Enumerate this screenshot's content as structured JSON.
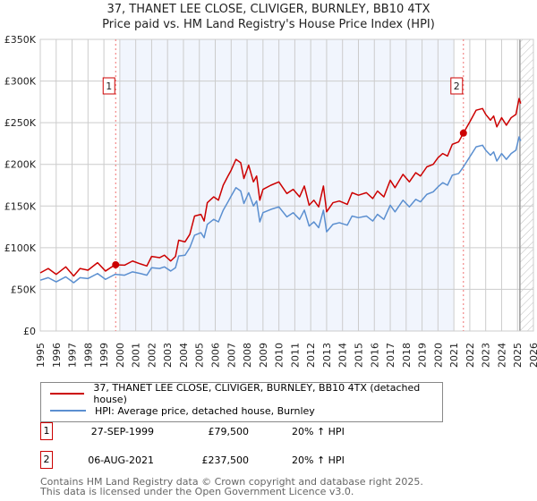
{
  "chart_data": {
    "type": "line",
    "title": "37, THANET LEE CLOSE, CLIVIGER, BURNLEY, BB10 4TX",
    "subtitle": "Price paid vs. HM Land Registry's House Price Index (HPI)",
    "xlim": [
      1995,
      2026
    ],
    "ylim": [
      0,
      350000
    ],
    "x_ticks": [
      "1995",
      "1996",
      "1997",
      "1998",
      "1999",
      "2000",
      "2001",
      "2002",
      "2003",
      "2004",
      "2005",
      "2006",
      "2007",
      "2008",
      "2009",
      "2010",
      "2011",
      "2012",
      "2013",
      "2014",
      "2015",
      "2016",
      "2017",
      "2018",
      "2019",
      "2020",
      "2021",
      "2022",
      "2023",
      "2024",
      "2025",
      "2026"
    ],
    "y_ticks": [
      {
        "v": 0,
        "label": "£0"
      },
      {
        "v": 50000,
        "label": "£50K"
      },
      {
        "v": 100000,
        "label": "£100K"
      },
      {
        "v": 150000,
        "label": "£150K"
      },
      {
        "v": 200000,
        "label": "£200K"
      },
      {
        "v": 250000,
        "label": "£250K"
      },
      {
        "v": 300000,
        "label": "£300K"
      },
      {
        "v": 350000,
        "label": "£350K"
      }
    ],
    "grid": true,
    "shaded_range": [
      2000.0,
      2021.0
    ],
    "hatched_from": 2025.15,
    "x": [
      1995.0,
      1995.5,
      1996.0,
      1996.6,
      1997.1,
      1997.5,
      1998.0,
      1998.6,
      1999.1,
      1999.7,
      2000.3,
      2000.8,
      2001.3,
      2001.7,
      2002.0,
      2002.5,
      2002.8,
      2003.2,
      2003.5,
      2003.7,
      2004.1,
      2004.4,
      2004.7,
      2005.1,
      2005.3,
      2005.5,
      2005.9,
      2006.2,
      2006.5,
      2006.8,
      2007.0,
      2007.3,
      2007.6,
      2007.8,
      2008.1,
      2008.4,
      2008.6,
      2008.8,
      2009.0,
      2009.5,
      2010.0,
      2010.5,
      2010.9,
      2011.3,
      2011.6,
      2011.9,
      2012.2,
      2012.5,
      2012.8,
      2013.0,
      2013.4,
      2013.8,
      2014.3,
      2014.6,
      2015.0,
      2015.5,
      2015.9,
      2016.2,
      2016.6,
      2017.0,
      2017.3,
      2017.8,
      2018.2,
      2018.6,
      2018.9,
      2019.3,
      2019.7,
      2020.0,
      2020.3,
      2020.6,
      2020.9,
      2021.3,
      2021.6,
      2022.0,
      2022.4,
      2022.8,
      2023.0,
      2023.3,
      2023.5,
      2023.7,
      2024.0,
      2024.3,
      2024.6,
      2024.9,
      2025.1,
      2025.2
    ],
    "series": [
      {
        "name": "37, THANET LEE CLOSE, CLIVIGER, BURNLEY, BB10 4TX (detached house)",
        "color": "#cc0000",
        "values": [
          69800,
          75000,
          68000,
          77000,
          66000,
          75000,
          73000,
          82000,
          72000,
          79500,
          79000,
          84000,
          80500,
          78000,
          89500,
          88000,
          91000,
          84000,
          89500,
          109000,
          107000,
          116000,
          138000,
          140000,
          132000,
          154000,
          161000,
          157000,
          175000,
          186000,
          193000,
          206000,
          202000,
          183000,
          199000,
          179000,
          186000,
          157000,
          170000,
          175000,
          179000,
          165000,
          170000,
          161000,
          174000,
          151000,
          157000,
          149000,
          174000,
          143000,
          154000,
          156000,
          152000,
          166000,
          163000,
          166000,
          159000,
          168000,
          161000,
          181000,
          172000,
          188000,
          179000,
          190000,
          186000,
          197000,
          200000,
          208000,
          213000,
          210000,
          224000,
          227000,
          237500,
          251000,
          265000,
          267000,
          260000,
          253000,
          258000,
          245000,
          256000,
          247000,
          256000,
          260000,
          279000,
          273000
        ]
      },
      {
        "name": "HPI: Average price, detached house, Burnley",
        "color": "#5b8fd0",
        "values": [
          61000,
          64000,
          59000,
          65000,
          58000,
          64000,
          63000,
          69000,
          62000,
          68000,
          67000,
          71000,
          69000,
          67000,
          76000,
          75000,
          77000,
          72000,
          76000,
          90000,
          91000,
          100000,
          115000,
          118000,
          112000,
          128000,
          134000,
          131000,
          145000,
          155000,
          162000,
          172000,
          168000,
          153000,
          166000,
          150000,
          156000,
          131000,
          142000,
          146000,
          149000,
          137000,
          142000,
          134000,
          145000,
          126000,
          131000,
          124000,
          145000,
          119000,
          128000,
          130000,
          127000,
          138000,
          136000,
          138000,
          132000,
          140000,
          134000,
          151000,
          143000,
          157000,
          149000,
          158000,
          155000,
          164000,
          167000,
          173000,
          178000,
          175000,
          187000,
          189000,
          197000,
          209000,
          221000,
          223000,
          217000,
          211000,
          215000,
          204000,
          213000,
          206000,
          213000,
          217000,
          233000,
          228000
        ]
      }
    ],
    "sales": [
      {
        "id": "1",
        "date": "27-SEP-1999",
        "x": 1999.74,
        "price": 79500,
        "price_label": "£79,500",
        "hpi": "20% ↑ HPI"
      },
      {
        "id": "2",
        "date": "06-AUG-2021",
        "x": 2021.6,
        "price": 237500,
        "price_label": "£237,500",
        "hpi": "20% ↑ HPI"
      }
    ]
  },
  "footer": {
    "line1": "Contains HM Land Registry data © Crown copyright and database right 2025.",
    "line2": "This data is licensed under the Open Government Licence v3.0."
  }
}
